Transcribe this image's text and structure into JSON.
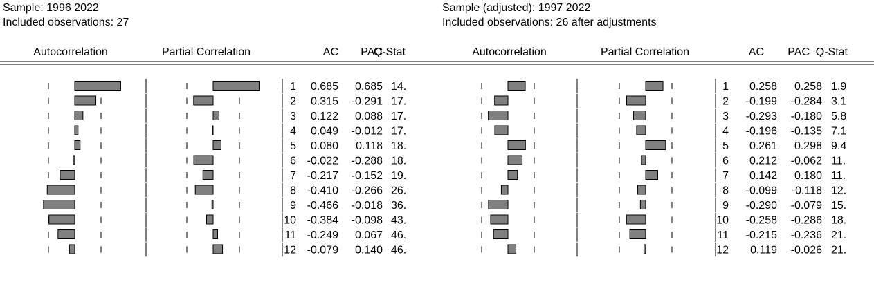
{
  "chart_data": [
    {
      "type": "bar",
      "sample": "Sample: 1996 2022",
      "observations": "Included observations: 27",
      "columns": [
        "Autocorrelation",
        "Partial Correlation",
        "AC",
        "PAC",
        "Q-Stat"
      ],
      "lags": [
        "1",
        "2",
        "3",
        "4",
        "5",
        "6",
        "7",
        "8",
        "9",
        "10",
        "11",
        "12"
      ],
      "ac": [
        0.685,
        0.315,
        0.122,
        0.049,
        0.08,
        -0.022,
        -0.217,
        -0.41,
        -0.466,
        -0.384,
        -0.249,
        -0.079
      ],
      "pac": [
        0.685,
        -0.291,
        0.088,
        -0.012,
        0.118,
        -0.288,
        -0.152,
        -0.266,
        -0.018,
        -0.098,
        0.067,
        0.14
      ],
      "ac_text": [
        "0.685",
        "0.315",
        "0.122",
        "0.049",
        "0.080",
        "-0.022",
        "-0.217",
        "-0.410",
        "-0.466",
        "-0.384",
        "-0.249",
        "-0.079"
      ],
      "pac_text": [
        "0.685",
        "-0.291",
        "0.088",
        "-0.012",
        "0.118",
        "-0.288",
        "-0.152",
        "-0.266",
        "-0.018",
        "-0.098",
        "0.067",
        "0.140"
      ],
      "q_text": [
        "14.",
        "17.",
        "17.",
        "17.",
        "18.",
        "18.",
        "19.",
        "26.",
        "36.",
        "43.",
        "46.",
        "46."
      ]
    },
    {
      "type": "bar",
      "sample": "Sample (adjusted): 1997 2022",
      "observations": "Included observations: 26 after adjustments",
      "columns": [
        "Autocorrelation",
        "Partial Correlation",
        "AC",
        "PAC",
        "Q-Stat"
      ],
      "lags": [
        "1",
        "2",
        "3",
        "4",
        "5",
        "6",
        "7",
        "8",
        "9",
        "10",
        "11",
        "12"
      ],
      "ac": [
        0.258,
        -0.199,
        -0.293,
        -0.196,
        0.261,
        0.212,
        0.142,
        -0.099,
        -0.29,
        -0.258,
        -0.215,
        0.119
      ],
      "pac": [
        0.258,
        -0.284,
        -0.18,
        -0.135,
        0.298,
        -0.062,
        0.18,
        -0.118,
        -0.079,
        -0.286,
        -0.236,
        -0.026
      ],
      "ac_text": [
        "0.258",
        "-0.199",
        "-0.293",
        "-0.196",
        "0.261",
        "0.212",
        "0.142",
        "-0.099",
        "-0.290",
        "-0.258",
        "-0.215",
        "0.119"
      ],
      "pac_text": [
        "0.258",
        "-0.284",
        "-0.180",
        "-0.135",
        "0.298",
        "-0.062",
        "0.180",
        "-0.118",
        "-0.079",
        "-0.286",
        "-0.236",
        "-0.026"
      ],
      "q_text": [
        "1.9",
        "3.1",
        "5.8",
        "7.1",
        "9.4",
        "11.",
        "11.",
        "12.",
        "15.",
        "18.",
        "21.",
        "21."
      ]
    }
  ],
  "colors": {
    "bar_fill": "#808080",
    "bar_stroke": "#000000",
    "line": "#000000"
  }
}
